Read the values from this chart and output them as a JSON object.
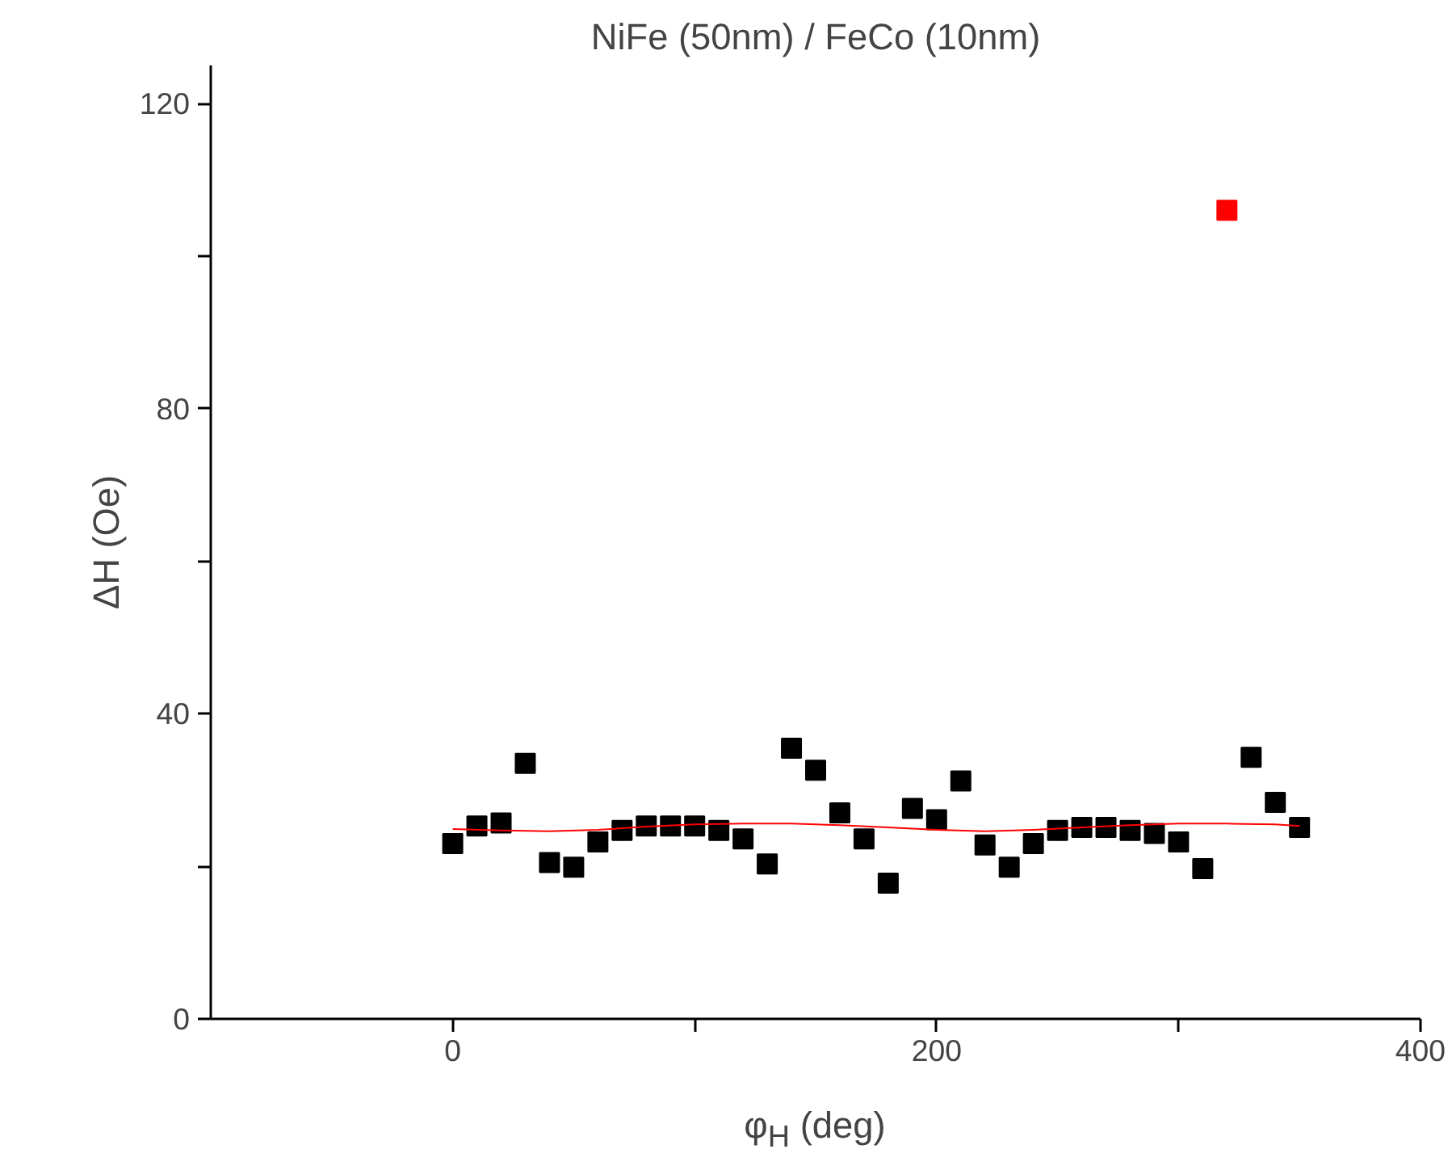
{
  "chart_data": {
    "type": "scatter",
    "title": "NiFe (50nm) / FeCo (10nm)",
    "xlabel": "φ$_{H}$ (deg)",
    "ylabel": "ΔH (Oe)",
    "xlim": [
      -100,
      400
    ],
    "ylim": [
      0,
      125
    ],
    "xticks": [
      0,
      {
        "value": 100,
        "label": null
      },
      200,
      {
        "value": 300,
        "label": null
      },
      400
    ],
    "yticks": [
      0,
      {
        "value": 20,
        "label": null
      },
      40,
      {
        "value": 60,
        "label": null
      },
      80,
      {
        "value": 100,
        "label": null
      },
      120
    ],
    "grid": false,
    "marker": "square",
    "series": [
      {
        "color": "#000000",
        "x": [
          0,
          10,
          20,
          30,
          40,
          50,
          60,
          70,
          80,
          90,
          100,
          110,
          120,
          130,
          140,
          150,
          160,
          170,
          180,
          190,
          200,
          210,
          220,
          230,
          240,
          250,
          260,
          270,
          280,
          290,
          300,
          310,
          330,
          340,
          350
        ],
        "values": [
          23.0,
          25.3,
          25.7,
          33.5,
          20.5,
          19.9,
          23.2,
          24.7,
          25.3,
          25.3,
          25.3,
          24.7,
          23.6,
          20.3,
          35.5,
          32.6,
          27.0,
          23.6,
          17.8,
          27.6,
          26.1,
          31.2,
          22.8,
          19.9,
          23.0,
          24.7,
          25.1,
          25.1,
          24.7,
          24.3,
          23.2,
          19.7,
          34.3,
          28.4,
          25.1
        ]
      },
      {
        "type": "scatter",
        "color": "#ff0000",
        "x": [
          320
        ],
        "values": [
          106.0
        ]
      },
      {
        "type": "line",
        "color": "#ff0000",
        "marker": "none",
        "x": [
          0,
          20,
          40,
          60,
          80,
          100,
          120,
          140,
          160,
          180,
          200,
          220,
          240,
          260,
          280,
          300,
          320,
          340,
          350
        ],
        "values": [
          24.9,
          24.7,
          24.6,
          24.8,
          25.2,
          25.5,
          25.6,
          25.6,
          25.4,
          25.1,
          24.8,
          24.6,
          24.8,
          25.1,
          25.4,
          25.6,
          25.6,
          25.5,
          25.3
        ]
      }
    ]
  }
}
